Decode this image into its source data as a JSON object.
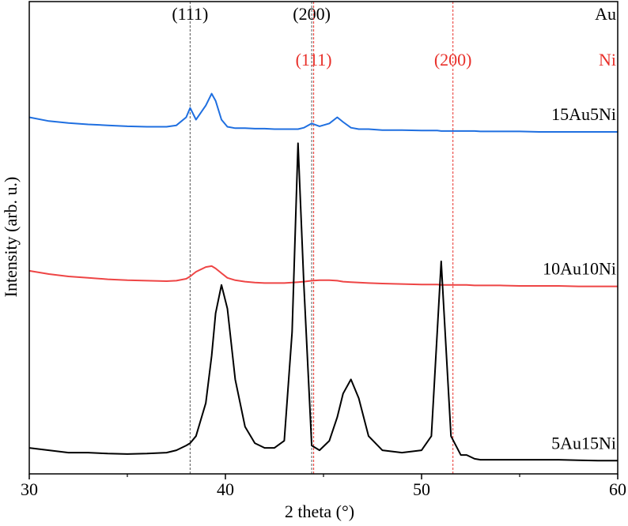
{
  "chart_data": {
    "type": "line",
    "xlabel": "2 theta (°)",
    "ylabel": "Intensity (arb. u.)",
    "xlim": [
      30,
      60
    ],
    "xticks": [
      30,
      40,
      50,
      60
    ],
    "xminor": [
      35,
      45,
      55
    ],
    "ylim": [
      0,
      100
    ],
    "x": [
      30,
      31,
      32,
      33,
      34,
      35,
      36,
      37,
      37.5,
      38,
      38.2,
      38.5,
      39,
      39.3,
      39.5,
      39.8,
      40.1,
      40.5,
      41,
      41.5,
      42,
      42.5,
      43,
      43.4,
      43.7,
      44,
      44.4,
      44.8,
      45.3,
      45.7,
      46,
      46.4,
      46.8,
      47.3,
      48,
      49,
      50,
      50.5,
      50.8,
      51,
      51.2,
      51.5,
      52,
      52.3,
      52.7,
      53,
      54,
      55,
      56,
      57,
      58,
      59,
      60
    ],
    "series": [
      {
        "name": "15Au5Ni",
        "color": "#1f6fe0",
        "values": [
          75.5,
          74.7,
          74.3,
          74,
          73.8,
          73.6,
          73.5,
          73.5,
          73.8,
          75.5,
          77.5,
          75,
          78,
          80.5,
          79,
          75,
          73.5,
          73.2,
          73.2,
          73.1,
          73.1,
          73,
          73,
          73,
          73,
          73.3,
          74.2,
          73.6,
          74.2,
          75.5,
          74.5,
          73.3,
          73,
          73,
          72.8,
          72.8,
          72.7,
          72.7,
          72.7,
          72.6,
          72.6,
          72.6,
          72.6,
          72.6,
          72.6,
          72.5,
          72.5,
          72.5,
          72.4,
          72.4,
          72.4,
          72.4,
          72.4
        ]
      },
      {
        "name": "10Au10Ni",
        "color": "#ee4545",
        "values": [
          43,
          42.3,
          41.8,
          41.5,
          41.2,
          41,
          40.9,
          40.8,
          40.9,
          41.3,
          41.8,
          42.8,
          43.8,
          44,
          43.5,
          42.5,
          41.5,
          41,
          40.7,
          40.5,
          40.4,
          40.4,
          40.4,
          40.5,
          40.6,
          40.7,
          40.9,
          41,
          41,
          40.9,
          40.7,
          40.6,
          40.5,
          40.4,
          40.3,
          40.2,
          40.1,
          40.1,
          40.1,
          40,
          40,
          40,
          40,
          40,
          39.9,
          39.9,
          39.9,
          39.8,
          39.8,
          39.8,
          39.7,
          39.7,
          39.7
        ]
      },
      {
        "name": "5Au15Ni",
        "color": "#000000",
        "values": [
          5.5,
          5,
          4.5,
          4.5,
          4.3,
          4.2,
          4.3,
          4.5,
          5,
          6,
          6.5,
          8,
          15,
          25,
          34,
          40,
          35,
          20,
          10,
          6.5,
          5.5,
          5.5,
          7,
          30,
          70,
          40,
          6,
          5,
          7,
          12,
          17,
          20,
          16,
          8,
          5,
          4.5,
          5,
          8,
          30,
          45,
          30,
          8,
          4,
          4,
          3.2,
          3,
          3,
          3,
          3,
          3,
          2.9,
          2.8,
          2.8
        ]
      }
    ],
    "references": [
      {
        "name": "Au",
        "color": "#555555",
        "lines": [
          {
            "x": 38.2,
            "label": "(111)"
          },
          {
            "x": 44.4,
            "label": "(200)"
          }
        ]
      },
      {
        "name": "Ni",
        "color": "#e8302a",
        "lines": [
          {
            "x": 44.5,
            "label": "(111)"
          },
          {
            "x": 51.6,
            "label": "(200)"
          }
        ]
      }
    ]
  }
}
